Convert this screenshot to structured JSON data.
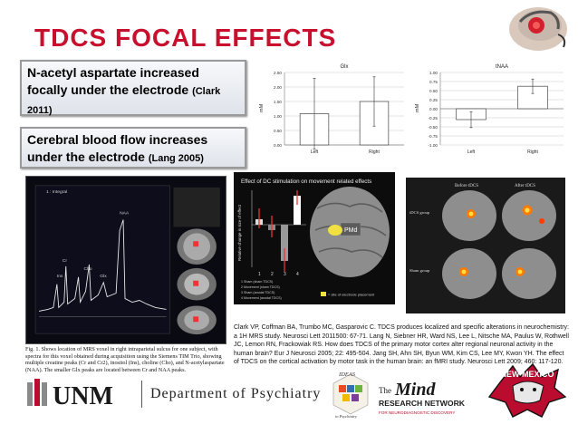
{
  "slide": {
    "title": "TDCS FOCAL EFFECTS"
  },
  "callouts": {
    "naa": {
      "text": "N-acetyl aspartate increased focally under the electrode",
      "cite": "(Clark 2011)"
    },
    "cbf": {
      "text": "Cerebral blood flow increases under the electrode",
      "cite": "(Lang 2005)"
    }
  },
  "chart_data": [
    {
      "type": "bar",
      "title": "Glx",
      "ylabel": "mM",
      "categories": [
        "Left",
        "Right"
      ],
      "values": [
        1.08,
        1.5
      ],
      "errors": [
        1.22,
        0.85
      ],
      "ylim": [
        0,
        2.5
      ],
      "yticks": [
        "2.50",
        "2.00",
        "1.50",
        "1.00",
        "0.50",
        "0.00"
      ],
      "grid": true
    },
    {
      "type": "bar",
      "title": "tNAA",
      "ylabel": "mM",
      "categories": [
        "Left",
        "Right"
      ],
      "values": [
        -0.3,
        0.62
      ],
      "errors": [
        0.22,
        0.2
      ],
      "ylim": [
        -1,
        1
      ],
      "yticks": [
        "1.00",
        "0.75",
        "0.50",
        "0.25",
        "0.00",
        "-0.25",
        "-0.50",
        "-0.75",
        "-1.00"
      ],
      "grid": true
    }
  ],
  "dc_figure": {
    "title": "Effect of DC stimulation on movement related effects",
    "ylabel": "Relative change in size of effect",
    "xticks": [
      "1",
      "2",
      "3",
      "4"
    ],
    "region_label": "PMd",
    "legend": [
      "1 Sham (sham TDCS)",
      "2 Movement (sham TDCS)",
      "3 Sham (anodal TDCS)",
      "4 Movement (anodal TDCS)"
    ],
    "electrode_note": "= site of electrode placement"
  },
  "fmri_figure": {
    "col1": "Before tDCS",
    "col2": "After tDCS",
    "row1": "tDCS group",
    "row2": "Sham group"
  },
  "mrs_figure": {
    "caption": "Fig. 1. Shows location of MRS voxel in right intraparietal sulcus for one subject, with spectra for this voxel obtained during acquisition using the Siemens TIM Trio, showing multiple creatine peaks (Cr and Cr2), inositol (Ins), choline (Cho), and N-acetylaspartate (NAA). The smaller Glx peaks are located between Cr and NAA peaks.",
    "labels": [
      "1 : Integral",
      "NAA",
      "Cr",
      "Cho",
      "Ins",
      "Glx"
    ]
  },
  "references": "Clark VP, Coffman BA, Trumbo MC, Gasparovic C. TDCS produces localized and specific alterations in neurochemistry: a 1H MRS study. Neurosci Lett 2011500: 67-71. Lang N, Siebner HR, Ward NS, Lee L, Nitsche MA, Paulus W, Rothwell JC, Lemon RN, Frackowiak RS. How does TDCS of the primary motor cortex alter regional neuronal activity in the human brain? Eur J Neurosci 2005; 22: 495-504. Jang SH, Ahn SH, Byun WM, Kim CS, Lee MY, Kwon YH. The effect of TDCS on the cortical activation by motor task in the human brain: an fMRI study. Neurosci Lett 2009; 460: 117-120.",
  "footer": {
    "unm": "UNM",
    "dept": "Department of Psychiatry",
    "ideas_top": "IDEAS",
    "ideas_bottom": "in Psychiatry",
    "mind_the": "The",
    "mind_word": "Mind",
    "mind_network": "RESEARCH NETWORK",
    "mind_tagline": "FOR NEURODIAGNOSTIC DISCOVERY",
    "newmexico": "NEW MEXICO"
  },
  "colors": {
    "title": "#c8102e",
    "bar": "#ffffff",
    "unm_red": "#ba0c2f"
  }
}
